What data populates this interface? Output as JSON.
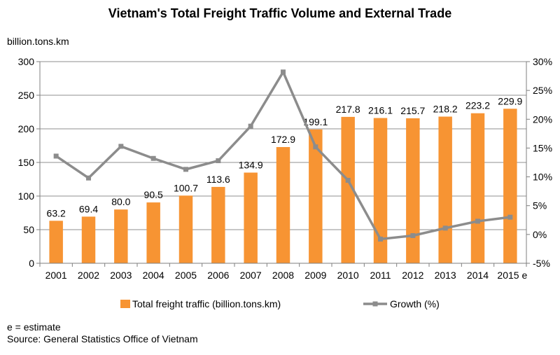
{
  "chart_data": {
    "type": "bar",
    "title": "Vietnam's Total Freight Traffic Volume and External Trade",
    "ylabel": "billion.tons.km",
    "categories": [
      "2001",
      "2002",
      "2003",
      "2004",
      "2005",
      "2006",
      "2007",
      "2008",
      "2009",
      "2010",
      "2011",
      "2012",
      "2013",
      "2014",
      "2015 e"
    ],
    "series": [
      {
        "name": "Total freight traffic (billion.tons.km)",
        "type": "bar",
        "axis": "left",
        "color": "#F79433",
        "values": [
          63.2,
          69.4,
          80.0,
          90.5,
          100.7,
          113.6,
          134.9,
          172.9,
          199.1,
          217.8,
          216.1,
          215.7,
          218.2,
          223.2,
          229.9
        ],
        "labels": [
          "63.2",
          "69.4",
          "80.0",
          "90.5",
          "100.7",
          "113.6",
          "134.9",
          "172.9",
          "199.1",
          "217.8",
          "216.1",
          "215.7",
          "218.2",
          "223.2",
          "229.9"
        ]
      },
      {
        "name": "Growth (%)",
        "type": "line",
        "axis": "right",
        "color": "#8C8C8C",
        "values": [
          13.6,
          9.8,
          15.3,
          13.2,
          11.3,
          12.8,
          18.8,
          28.2,
          15.2,
          9.4,
          -0.8,
          -0.2,
          1.1,
          2.3,
          3.0
        ]
      }
    ],
    "ylim": [
      0,
      300
    ],
    "yticks": [
      "0",
      "50",
      "100",
      "150",
      "200",
      "250",
      "300"
    ],
    "y2lim": [
      -5,
      30
    ],
    "y2ticks": [
      "-5%",
      "0%",
      "5%",
      "10%",
      "15%",
      "20%",
      "25%",
      "30%"
    ],
    "grid": true,
    "legend": "bottom"
  },
  "footer": {
    "note": "e = estimate",
    "source": "Source: General Statistics Office of Vietnam"
  }
}
